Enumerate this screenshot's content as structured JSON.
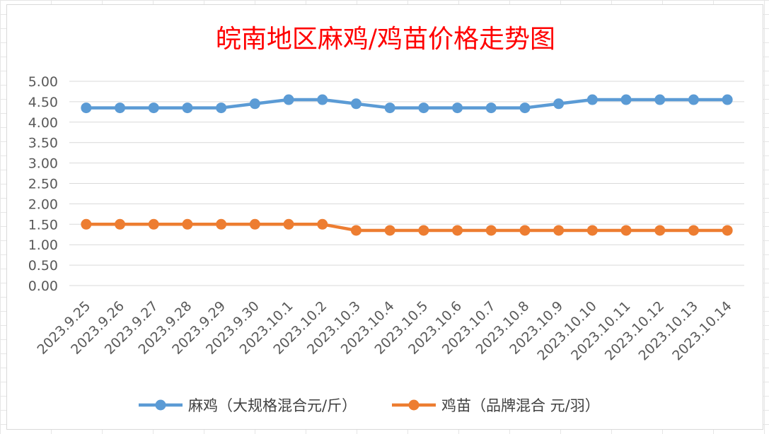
{
  "chart_data": {
    "type": "line",
    "title": "皖南地区麻鸡/鸡苗价格走势图",
    "title_color": "#ff0000",
    "categories": [
      "2023.9.25",
      "2023.9.26",
      "2023.9.27",
      "2023.9.28",
      "2023.9.29",
      "2023.9.30",
      "2023.10.1",
      "2023.10.2",
      "2023.10.3",
      "2023.10.4",
      "2023.10.5",
      "2023.10.6",
      "2023.10.7",
      "2023.10.8",
      "2023.10.9",
      "2023.10.10",
      "2023.10.11",
      "2023.10.12",
      "2023.10.13",
      "2023.10.14"
    ],
    "y_tick_labels": [
      "0.00",
      "0.50",
      "1.00",
      "1.50",
      "2.00",
      "2.50",
      "3.00",
      "3.50",
      "4.00",
      "4.50",
      "5.00"
    ],
    "ylim": [
      0,
      5
    ],
    "grid": true,
    "legend_position": "bottom",
    "series": [
      {
        "name": "麻鸡（大规格混合元/斤）",
        "color": "#5b9bd5",
        "values": [
          4.35,
          4.35,
          4.35,
          4.35,
          4.35,
          4.45,
          4.55,
          4.55,
          4.45,
          4.35,
          4.35,
          4.35,
          4.35,
          4.35,
          4.45,
          4.55,
          4.55,
          4.55,
          4.55,
          4.55
        ]
      },
      {
        "name": "鸡苗（品牌混合 元/羽）",
        "color": "#ed7d31",
        "values": [
          1.5,
          1.5,
          1.5,
          1.5,
          1.5,
          1.5,
          1.5,
          1.5,
          1.35,
          1.35,
          1.35,
          1.35,
          1.35,
          1.35,
          1.35,
          1.35,
          1.35,
          1.35,
          1.35,
          1.35
        ]
      }
    ]
  }
}
